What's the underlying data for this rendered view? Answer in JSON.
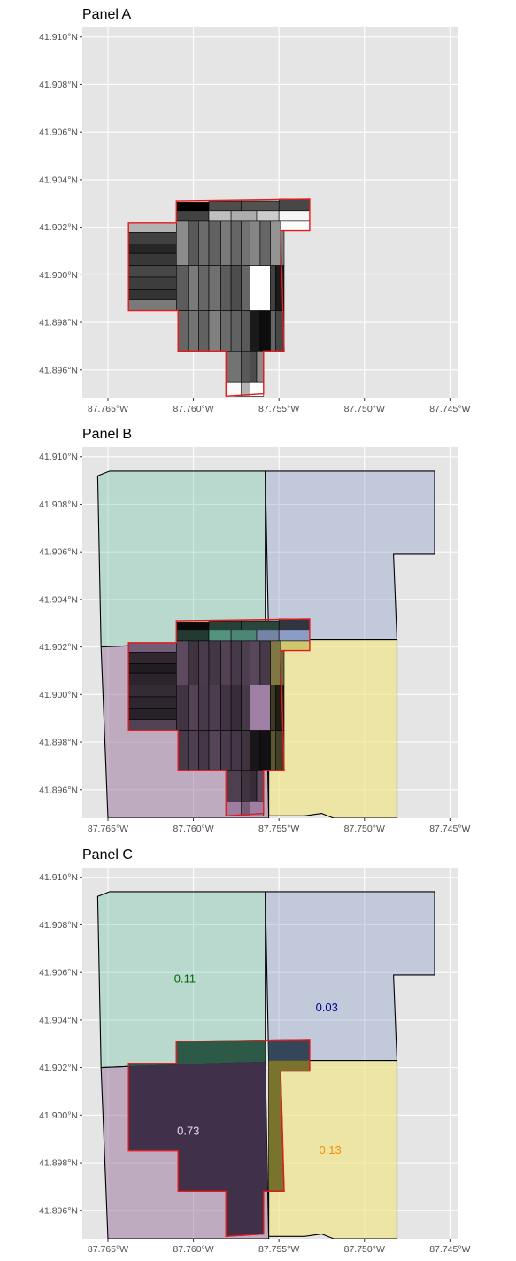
{
  "figure": {
    "background": "#ffffff",
    "panel_background": "#e5e5e5",
    "grid_color": "#ffffff"
  },
  "chart_data": [
    {
      "type": "map",
      "id": "A",
      "title": "Panel A",
      "xlabel": "",
      "ylabel": "",
      "x_ticks": [
        {
          "value": -87.765,
          "label": "87.765°W"
        },
        {
          "value": -87.76,
          "label": "87.760°W"
        },
        {
          "value": -87.755,
          "label": "87.755°W"
        },
        {
          "value": -87.75,
          "label": "87.750°W"
        },
        {
          "value": -87.745,
          "label": "87.745°W"
        }
      ],
      "y_ticks": [
        {
          "value": 41.91,
          "label": "41.910°N"
        },
        {
          "value": 41.908,
          "label": "41.908°N"
        },
        {
          "value": 41.906,
          "label": "41.906°N"
        },
        {
          "value": 41.904,
          "label": "41.904°N"
        },
        {
          "value": 41.902,
          "label": "41.902°N"
        },
        {
          "value": 41.9,
          "label": "41.900°N"
        },
        {
          "value": 41.898,
          "label": "41.898°N"
        },
        {
          "value": 41.896,
          "label": "41.896°N"
        }
      ],
      "xlim": [
        -87.7665,
        -87.7445
      ],
      "ylim": [
        41.8948,
        41.9104
      ],
      "grid": true,
      "layers": [
        "blocks"
      ],
      "boundary_color": "#e41a1c"
    },
    {
      "type": "map",
      "id": "B",
      "title": "Panel B",
      "xlabel": "",
      "ylabel": "",
      "x_ticks": [
        {
          "value": -87.765,
          "label": "87.765°W"
        },
        {
          "value": -87.76,
          "label": "87.760°W"
        },
        {
          "value": -87.755,
          "label": "87.755°W"
        },
        {
          "value": -87.75,
          "label": "87.750°W"
        },
        {
          "value": -87.745,
          "label": "87.745°W"
        }
      ],
      "y_ticks": [
        {
          "value": 41.91,
          "label": "41.910°N"
        },
        {
          "value": 41.908,
          "label": "41.908°N"
        },
        {
          "value": 41.906,
          "label": "41.906°N"
        },
        {
          "value": 41.904,
          "label": "41.904°N"
        },
        {
          "value": 41.902,
          "label": "41.902°N"
        },
        {
          "value": 41.9,
          "label": "41.900°N"
        },
        {
          "value": 41.898,
          "label": "41.898°N"
        },
        {
          "value": 41.896,
          "label": "41.896°N"
        }
      ],
      "xlim": [
        -87.7665,
        -87.7445
      ],
      "ylim": [
        41.8948,
        41.9104
      ],
      "grid": true,
      "layers": [
        "regions",
        "blocks"
      ],
      "boundary_color": "#e41a1c"
    },
    {
      "type": "map",
      "id": "C",
      "title": "Panel C",
      "xlabel": "",
      "ylabel": "",
      "x_ticks": [
        {
          "value": -87.765,
          "label": "87.765°W"
        },
        {
          "value": -87.76,
          "label": "87.760°W"
        },
        {
          "value": -87.755,
          "label": "87.755°W"
        },
        {
          "value": -87.75,
          "label": "87.750°W"
        },
        {
          "value": -87.745,
          "label": "87.745°W"
        }
      ],
      "y_ticks": [
        {
          "value": 41.91,
          "label": "41.910°N"
        },
        {
          "value": 41.908,
          "label": "41.908°N"
        },
        {
          "value": 41.906,
          "label": "41.906°N"
        },
        {
          "value": 41.904,
          "label": "41.904°N"
        },
        {
          "value": 41.902,
          "label": "41.902°N"
        },
        {
          "value": 41.9,
          "label": "41.900°N"
        },
        {
          "value": 41.898,
          "label": "41.898°N"
        },
        {
          "value": 41.896,
          "label": "41.896°N"
        }
      ],
      "xlim": [
        -87.7665,
        -87.7445
      ],
      "ylim": [
        41.8948,
        41.9104
      ],
      "grid": true,
      "layers": [
        "regions",
        "intersections",
        "labels"
      ],
      "boundary_color": "#e41a1c",
      "region_values": [
        {
          "region": "NW",
          "value": "0.11",
          "color": "#006400",
          "lon": -87.7605,
          "lat": 41.9057
        },
        {
          "region": "NE",
          "value": "0.03",
          "color": "#00008b",
          "lon": -87.7522,
          "lat": 41.9045
        },
        {
          "region": "SW",
          "value": "0.73",
          "color": "#e8daf0",
          "lon": -87.7603,
          "lat": 41.8993
        },
        {
          "region": "SE",
          "value": "0.13",
          "color": "#ff8c00",
          "lon": -87.752,
          "lat": 41.8985
        }
      ]
    }
  ],
  "regions": [
    {
      "name": "NW",
      "fill": "#66c2a5",
      "fill_opacity": 0.35,
      "intersect_fill": "#2d5a46",
      "coords": [
        [
          -87.7656,
          41.9092
        ],
        [
          -87.7649,
          41.9094
        ],
        [
          -87.7558,
          41.9094
        ],
        [
          -87.7558,
          41.90225
        ],
        [
          -87.7606,
          41.90215
        ],
        [
          -87.7654,
          41.902
        ]
      ]
    },
    {
      "name": "NE",
      "fill": "#8da0cb",
      "fill_opacity": 0.4,
      "intersect_fill": "#34465a",
      "coords": [
        [
          -87.7558,
          41.9094
        ],
        [
          -87.7459,
          41.9094
        ],
        [
          -87.7459,
          41.9059
        ],
        [
          -87.7483,
          41.9059
        ],
        [
          -87.7481,
          41.9023
        ],
        [
          -87.7556,
          41.9023
        ]
      ]
    },
    {
      "name": "SW",
      "fill": "#9e7ba3",
      "fill_opacity": 0.55,
      "intersect_fill": "#41304a",
      "coords": [
        [
          -87.7654,
          41.902
        ],
        [
          -87.7606,
          41.90215
        ],
        [
          -87.7558,
          41.90225
        ],
        [
          -87.7556,
          41.8948
        ],
        [
          -87.765,
          41.8948
        ]
      ]
    },
    {
      "name": "SE",
      "fill": "#f0e68c",
      "fill_opacity": 0.7,
      "intersect_fill": "#7a732e",
      "coords": [
        [
          -87.7556,
          41.9023
        ],
        [
          -87.7481,
          41.9023
        ],
        [
          -87.7481,
          41.8948
        ],
        [
          -87.7518,
          41.8948
        ],
        [
          -87.7525,
          41.895
        ],
        [
          -87.7535,
          41.8949
        ],
        [
          -87.7556,
          41.8949
        ]
      ]
    }
  ],
  "study_area": {
    "parts": [
      [
        [
          -87.7638,
          41.90218
        ],
        [
          -87.761,
          41.90218
        ],
        [
          -87.761,
          41.9031
        ],
        [
          -87.7532,
          41.90318
        ],
        [
          -87.7532,
          41.90185
        ],
        [
          -87.7549,
          41.90185
        ],
        [
          -87.7547,
          41.8968
        ],
        [
          -87.7559,
          41.8968
        ],
        [
          -87.7559,
          41.895
        ],
        [
          -87.7581,
          41.8949
        ],
        [
          -87.7581,
          41.8968
        ],
        [
          -87.7609,
          41.8968
        ],
        [
          -87.7609,
          41.8985
        ],
        [
          -87.7638,
          41.8985
        ]
      ]
    ]
  },
  "blocks": [
    {
      "x0": -87.761,
      "x1": -87.7591,
      "y0": 41.9027,
      "y1": 41.90305,
      "g": 0.0
    },
    {
      "x0": -87.7591,
      "x1": -87.7572,
      "y0": 41.9027,
      "y1": 41.9031,
      "g": 0.3
    },
    {
      "x0": -87.7572,
      "x1": -87.755,
      "y0": 41.9027,
      "y1": 41.9031,
      "g": 0.32
    },
    {
      "x0": -87.755,
      "x1": -87.7532,
      "y0": 41.9027,
      "y1": 41.90318,
      "g": 0.28
    },
    {
      "x0": -87.761,
      "x1": -87.7591,
      "y0": 41.90225,
      "y1": 41.9027,
      "g": 0.26
    },
    {
      "x0": -87.7591,
      "x1": -87.7578,
      "y0": 41.90225,
      "y1": 41.9027,
      "g": 0.75
    },
    {
      "x0": -87.7578,
      "x1": -87.7563,
      "y0": 41.90225,
      "y1": 41.9027,
      "g": 0.68
    },
    {
      "x0": -87.7563,
      "x1": -87.755,
      "y0": 41.90225,
      "y1": 41.9027,
      "g": 0.8
    },
    {
      "x0": -87.755,
      "x1": -87.7532,
      "y0": 41.90225,
      "y1": 41.9027,
      "g": 0.97
    },
    {
      "x0": -87.7563,
      "x1": -87.755,
      "y0": 41.90185,
      "y1": 41.90225,
      "g": 0.95
    },
    {
      "x0": -87.755,
      "x1": -87.7532,
      "y0": 41.90185,
      "y1": 41.90225,
      "g": 0.99
    },
    {
      "x0": -87.7638,
      "x1": -87.761,
      "y0": 41.90178,
      "y1": 41.90218,
      "g": 0.7
    },
    {
      "x0": -87.7638,
      "x1": -87.761,
      "y0": 41.9013,
      "y1": 41.90178,
      "g": 0.25
    },
    {
      "x0": -87.7638,
      "x1": -87.761,
      "y0": 41.9009,
      "y1": 41.9013,
      "g": 0.15
    },
    {
      "x0": -87.7638,
      "x1": -87.761,
      "y0": 41.9004,
      "y1": 41.9009,
      "g": 0.22
    },
    {
      "x0": -87.7638,
      "x1": -87.761,
      "y0": 41.8999,
      "y1": 41.9004,
      "g": 0.28
    },
    {
      "x0": -87.7638,
      "x1": -87.761,
      "y0": 41.8994,
      "y1": 41.8999,
      "g": 0.24
    },
    {
      "x0": -87.7638,
      "x1": -87.761,
      "y0": 41.89895,
      "y1": 41.8994,
      "g": 0.2
    },
    {
      "x0": -87.7638,
      "x1": -87.761,
      "y0": 41.8985,
      "y1": 41.89895,
      "g": 0.48
    },
    {
      "x0": -87.761,
      "x1": -87.7603,
      "y0": 41.9004,
      "y1": 41.90225,
      "g": 0.55
    },
    {
      "x0": -87.7603,
      "x1": -87.7597,
      "y0": 41.9004,
      "y1": 41.90225,
      "g": 0.35
    },
    {
      "x0": -87.7597,
      "x1": -87.7591,
      "y0": 41.9004,
      "y1": 41.90225,
      "g": 0.42
    },
    {
      "x0": -87.7591,
      "x1": -87.7584,
      "y0": 41.9004,
      "y1": 41.90225,
      "g": 0.38
    },
    {
      "x0": -87.7584,
      "x1": -87.7578,
      "y0": 41.9004,
      "y1": 41.90225,
      "g": 0.48
    },
    {
      "x0": -87.7578,
      "x1": -87.7572,
      "y0": 41.9004,
      "y1": 41.90225,
      "g": 0.4
    },
    {
      "x0": -87.7572,
      "x1": -87.7567,
      "y0": 41.9004,
      "y1": 41.90225,
      "g": 0.45
    },
    {
      "x0": -87.7567,
      "x1": -87.7561,
      "y0": 41.9004,
      "y1": 41.90225,
      "g": 0.52
    },
    {
      "x0": -87.7561,
      "x1": -87.7555,
      "y0": 41.9004,
      "y1": 41.90225,
      "g": 0.4
    },
    {
      "x0": -87.7555,
      "x1": -87.7549,
      "y0": 41.9004,
      "y1": 41.90225,
      "g": 0.58
    },
    {
      "x0": -87.7549,
      "x1": -87.7547,
      "y0": 41.9004,
      "y1": 41.90185,
      "g": 0.5
    },
    {
      "x0": -87.761,
      "x1": -87.7603,
      "y0": 41.8985,
      "y1": 41.9004,
      "g": 0.36
    },
    {
      "x0": -87.7603,
      "x1": -87.7597,
      "y0": 41.8985,
      "y1": 41.9004,
      "g": 0.48
    },
    {
      "x0": -87.7597,
      "x1": -87.7591,
      "y0": 41.8985,
      "y1": 41.9004,
      "g": 0.4
    },
    {
      "x0": -87.7591,
      "x1": -87.7584,
      "y0": 41.8985,
      "y1": 41.9004,
      "g": 0.44
    },
    {
      "x0": -87.7584,
      "x1": -87.7578,
      "y0": 41.8985,
      "y1": 41.9004,
      "g": 0.36
    },
    {
      "x0": -87.7578,
      "x1": -87.7572,
      "y0": 41.8985,
      "y1": 41.9004,
      "g": 0.3
    },
    {
      "x0": -87.7572,
      "x1": -87.7567,
      "y0": 41.8985,
      "y1": 41.9004,
      "g": 0.4
    },
    {
      "x0": -87.7567,
      "x1": -87.7555,
      "y0": 41.8985,
      "y1": 41.9004,
      "g": 1.0
    },
    {
      "x0": -87.7555,
      "x1": -87.7552,
      "y0": 41.8985,
      "y1": 41.9004,
      "g": 0.26
    },
    {
      "x0": -87.7552,
      "x1": -87.7547,
      "y0": 41.8985,
      "y1": 41.9004,
      "g": 0.1
    },
    {
      "x0": -87.7609,
      "x1": -87.7603,
      "y0": 41.8968,
      "y1": 41.8985,
      "g": 0.4
    },
    {
      "x0": -87.7603,
      "x1": -87.7597,
      "y0": 41.8968,
      "y1": 41.8985,
      "g": 0.45
    },
    {
      "x0": -87.7597,
      "x1": -87.7591,
      "y0": 41.8968,
      "y1": 41.8985,
      "g": 0.38
    },
    {
      "x0": -87.7591,
      "x1": -87.7584,
      "y0": 41.8968,
      "y1": 41.8985,
      "g": 0.5
    },
    {
      "x0": -87.7584,
      "x1": -87.7578,
      "y0": 41.8968,
      "y1": 41.8985,
      "g": 0.42
    },
    {
      "x0": -87.7578,
      "x1": -87.7572,
      "y0": 41.8968,
      "y1": 41.8985,
      "g": 0.38
    },
    {
      "x0": -87.7572,
      "x1": -87.7567,
      "y0": 41.8968,
      "y1": 41.8985,
      "g": 0.35
    },
    {
      "x0": -87.7567,
      "x1": -87.7561,
      "y0": 41.8968,
      "y1": 41.8985,
      "g": 0.1
    },
    {
      "x0": -87.7561,
      "x1": -87.7555,
      "y0": 41.8968,
      "y1": 41.8985,
      "g": 0.05
    },
    {
      "x0": -87.7555,
      "x1": -87.7552,
      "y0": 41.8968,
      "y1": 41.8985,
      "g": 0.4
    },
    {
      "x0": -87.7552,
      "x1": -87.7547,
      "y0": 41.8968,
      "y1": 41.8985,
      "g": 0.28
    },
    {
      "x0": -87.7581,
      "x1": -87.7572,
      "y0": 41.8955,
      "y1": 41.8968,
      "g": 0.45
    },
    {
      "x0": -87.7572,
      "x1": -87.7567,
      "y0": 41.8955,
      "y1": 41.8968,
      "g": 0.35
    },
    {
      "x0": -87.7567,
      "x1": -87.7563,
      "y0": 41.8955,
      "y1": 41.8968,
      "g": 0.3
    },
    {
      "x0": -87.7563,
      "x1": -87.7559,
      "y0": 41.8955,
      "y1": 41.8968,
      "g": 0.55
    },
    {
      "x0": -87.7581,
      "x1": -87.7572,
      "y0": 41.8949,
      "y1": 41.8955,
      "g": 0.98
    },
    {
      "x0": -87.7572,
      "x1": -87.7567,
      "y0": 41.8949,
      "y1": 41.8955,
      "g": 0.7
    },
    {
      "x0": -87.7567,
      "x1": -87.7559,
      "y0": 41.8949,
      "y1": 41.8955,
      "g": 1.0
    }
  ]
}
